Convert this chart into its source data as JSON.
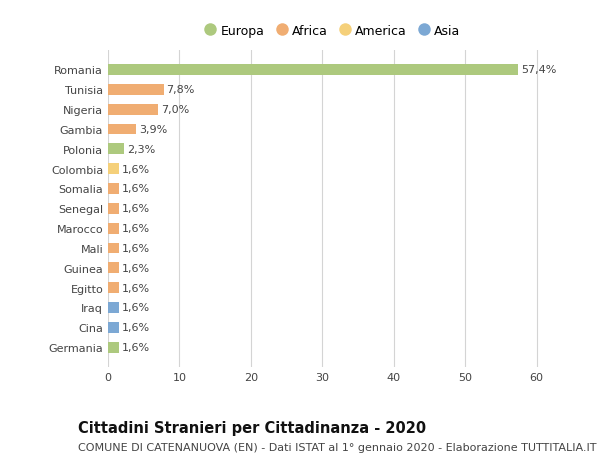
{
  "countries": [
    "Romania",
    "Tunisia",
    "Nigeria",
    "Gambia",
    "Polonia",
    "Colombia",
    "Somalia",
    "Senegal",
    "Marocco",
    "Mali",
    "Guinea",
    "Egitto",
    "Iraq",
    "Cina",
    "Germania"
  ],
  "values": [
    57.4,
    7.8,
    7.0,
    3.9,
    2.3,
    1.6,
    1.6,
    1.6,
    1.6,
    1.6,
    1.6,
    1.6,
    1.6,
    1.6,
    1.6
  ],
  "labels": [
    "57,4%",
    "7,8%",
    "7,0%",
    "3,9%",
    "2,3%",
    "1,6%",
    "1,6%",
    "1,6%",
    "1,6%",
    "1,6%",
    "1,6%",
    "1,6%",
    "1,6%",
    "1,6%",
    "1,6%"
  ],
  "colors": [
    "#adc97e",
    "#f0ad72",
    "#f0ad72",
    "#f0ad72",
    "#adc97e",
    "#f5d07a",
    "#f0ad72",
    "#f0ad72",
    "#f0ad72",
    "#f0ad72",
    "#f0ad72",
    "#f0ad72",
    "#7ca8d4",
    "#7ca8d4",
    "#adc97e"
  ],
  "legend_labels": [
    "Europa",
    "Africa",
    "America",
    "Asia"
  ],
  "legend_colors": [
    "#adc97e",
    "#f0ad72",
    "#f5d07a",
    "#7ca8d4"
  ],
  "xlim": [
    0,
    63
  ],
  "xticks": [
    0,
    10,
    20,
    30,
    40,
    50,
    60
  ],
  "title": "Cittadini Stranieri per Cittadinanza - 2020",
  "subtitle": "COMUNE DI CATENANUOVA (EN) - Dati ISTAT al 1° gennaio 2020 - Elaborazione TUTTITALIA.IT",
  "bg_color": "#ffffff",
  "grid_color": "#d4d4d4",
  "bar_height": 0.55,
  "title_fontsize": 10.5,
  "subtitle_fontsize": 8,
  "label_fontsize": 8,
  "tick_fontsize": 8,
  "legend_fontsize": 9
}
